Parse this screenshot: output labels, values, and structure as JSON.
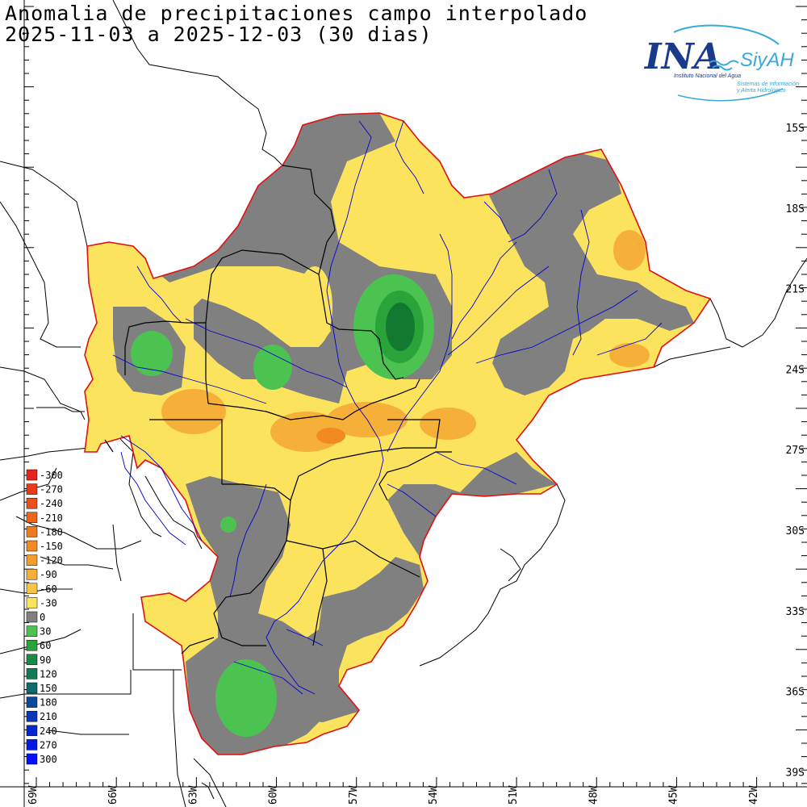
{
  "title": {
    "line1": "Anomalia de precipitaciones campo interpolado",
    "line2": "2025-11-03 a 2025-12-03 (30 dias)"
  },
  "logo": {
    "main": "INA",
    "brand": "SiyAH",
    "sub1": "Instituto Nacional del Agua",
    "sub2": "Sistemas de Información",
    "sub3": "y Alerta Hidrológico",
    "colors": {
      "blue": "#1a3a8c",
      "cyan": "#39a9d8"
    }
  },
  "axes": {
    "lat_labels": [
      "15S",
      "18S",
      "21S",
      "24S",
      "27S",
      "30S",
      "33S",
      "36S",
      "39S"
    ],
    "lon_labels": [
      "69W",
      "66W",
      "63W",
      "60W",
      "57W",
      "54W",
      "51W",
      "48W",
      "45W",
      "42W"
    ]
  },
  "legend": {
    "entries": [
      {
        "label": "-300",
        "color": "#e8231e"
      },
      {
        "label": "-270",
        "color": "#ea3a1c"
      },
      {
        "label": "-240",
        "color": "#ec4f1c"
      },
      {
        "label": "-210",
        "color": "#ee651c"
      },
      {
        "label": "-180",
        "color": "#f07a1e"
      },
      {
        "label": "-150",
        "color": "#f28a22"
      },
      {
        "label": "-120",
        "color": "#f49c2c"
      },
      {
        "label": "-90",
        "color": "#f6b038"
      },
      {
        "label": "-60",
        "color": "#f8c446"
      },
      {
        "label": "-30",
        "color": "#fce35e"
      },
      {
        "label": "0",
        "color": "#808080"
      },
      {
        "label": "30",
        "color": "#4cc350"
      },
      {
        "label": "60",
        "color": "#2aa33a"
      },
      {
        "label": "90",
        "color": "#1a8a48"
      },
      {
        "label": "120",
        "color": "#127a58"
      },
      {
        "label": "150",
        "color": "#0e6a6e"
      },
      {
        "label": "180",
        "color": "#0b4a9a"
      },
      {
        "label": "210",
        "color": "#0838b8"
      },
      {
        "label": "240",
        "color": "#0626d2"
      },
      {
        "label": "270",
        "color": "#0418e6"
      },
      {
        "label": "300",
        "color": "#0010ff"
      }
    ]
  },
  "colors": {
    "boundary": "#e01010",
    "rivers": "#0000d0",
    "borders": "#000000",
    "grey": "#808080",
    "yellow": "#fce35e",
    "light_orange": "#f8c446",
    "orange": "#f6b038",
    "green": "#4cc350",
    "mid_green": "#2aa33a",
    "dark_green": "#127a30"
  }
}
